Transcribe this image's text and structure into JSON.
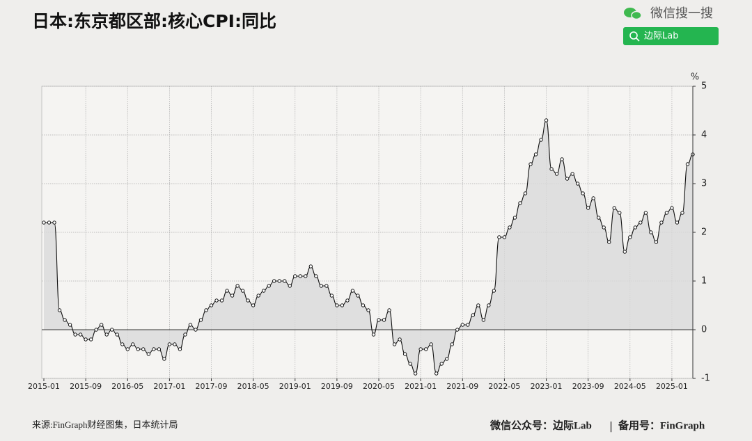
{
  "header": {
    "search_label": "微信搜一搜",
    "search_button": "边际Lab"
  },
  "chart_data": {
    "type": "line",
    "title": "日本:东京都区部:核心CPI:同比",
    "y_unit": "%",
    "source": "来源:FinGraph财经图集，日本统计局",
    "categories": [
      "2015-01",
      null,
      null,
      null,
      null,
      null,
      null,
      null,
      "2015-09",
      null,
      null,
      null,
      null,
      null,
      null,
      null,
      "2016-05",
      null,
      null,
      null,
      null,
      null,
      null,
      null,
      "2017-01",
      null,
      null,
      null,
      null,
      null,
      null,
      null,
      "2017-09",
      null,
      null,
      null,
      null,
      null,
      null,
      null,
      "2018-05",
      null,
      null,
      null,
      null,
      null,
      null,
      null,
      "2019-01",
      null,
      null,
      null,
      null,
      null,
      null,
      null,
      "2019-09",
      null,
      null,
      null,
      null,
      null,
      null,
      null,
      "2020-05",
      null,
      null,
      null,
      null,
      null,
      null,
      null,
      "2021-01",
      null,
      null,
      null,
      null,
      null,
      null,
      null,
      "2021-09",
      null,
      null,
      null,
      null,
      null,
      null,
      null,
      "2022-05",
      null,
      null,
      null,
      null,
      null,
      null,
      null,
      "2023-01",
      null,
      null,
      null,
      null,
      null,
      null,
      null,
      "2023-09",
      null,
      null,
      null,
      null,
      null,
      null,
      null,
      "2024-05",
      null,
      null,
      null,
      null,
      null,
      null,
      null,
      "2025-01",
      null,
      null,
      null,
      null
    ],
    "values": [
      2.2,
      2.2,
      2.2,
      0.4,
      0.2,
      0.1,
      -0.1,
      -0.1,
      -0.2,
      -0.2,
      0.0,
      0.1,
      -0.1,
      0.0,
      -0.1,
      -0.3,
      -0.4,
      -0.3,
      -0.4,
      -0.4,
      -0.5,
      -0.4,
      -0.4,
      -0.6,
      -0.3,
      -0.3,
      -0.4,
      -0.1,
      0.1,
      0.0,
      0.2,
      0.4,
      0.5,
      0.6,
      0.6,
      0.8,
      0.7,
      0.9,
      0.8,
      0.6,
      0.5,
      0.7,
      0.8,
      0.9,
      1.0,
      1.0,
      1.0,
      0.9,
      1.1,
      1.1,
      1.1,
      1.3,
      1.1,
      0.9,
      0.9,
      0.7,
      0.5,
      0.5,
      0.6,
      0.8,
      0.7,
      0.5,
      0.4,
      -0.1,
      0.2,
      0.2,
      0.4,
      -0.3,
      -0.2,
      -0.5,
      -0.7,
      -0.9,
      -0.4,
      -0.4,
      -0.3,
      -0.9,
      -0.7,
      -0.6,
      -0.3,
      0.0,
      0.1,
      0.1,
      0.3,
      0.5,
      0.2,
      0.5,
      0.8,
      1.9,
      1.9,
      2.1,
      2.3,
      2.6,
      2.8,
      3.4,
      3.6,
      3.9,
      4.3,
      3.3,
      3.2,
      3.5,
      3.1,
      3.2,
      3.0,
      2.8,
      2.5,
      2.7,
      2.3,
      2.1,
      1.8,
      2.5,
      2.4,
      1.6,
      1.9,
      2.1,
      2.2,
      2.4,
      2.0,
      1.8,
      2.2,
      2.4,
      2.5,
      2.2,
      2.4,
      3.4,
      3.6
    ],
    "color": "#111111",
    "area_color": "#dadada",
    "ylim": [
      -1,
      5
    ],
    "yticks": [
      -1,
      0,
      1,
      2,
      3,
      4,
      5
    ],
    "grid": true
  },
  "footer": {
    "left": "微信公众号：边际Lab",
    "sep": "|",
    "right": "备用号：FinGraph"
  }
}
